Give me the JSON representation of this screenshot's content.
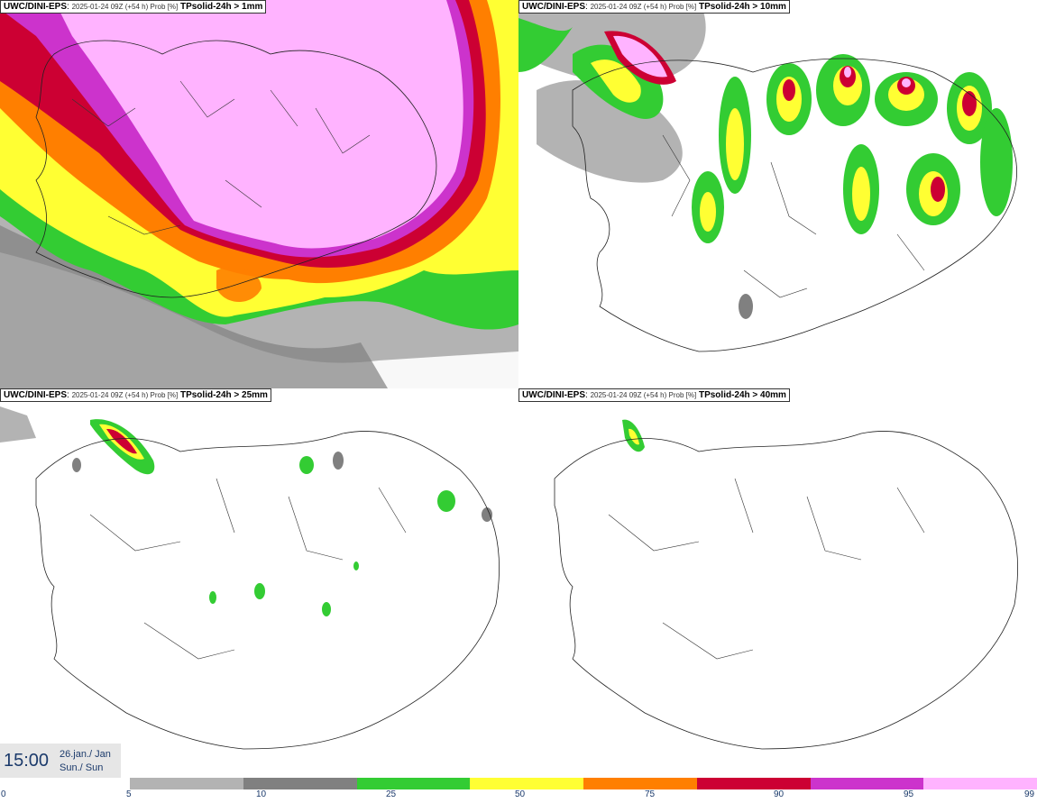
{
  "panels": [
    {
      "model": "UWC/DINI-EPS",
      "run": "2025-01-24 09Z (+54 h) Prob [%]",
      "param": "TPsolid-24h > 1mm"
    },
    {
      "model": "UWC/DINI-EPS",
      "run": "2025-01-24 09Z (+54 h) Prob [%]",
      "param": "TPsolid-24h > 10mm"
    },
    {
      "model": "UWC/DINI-EPS",
      "run": "2025-01-24 09Z (+54 h) Prob [%]",
      "param": "TPsolid-24h > 25mm"
    },
    {
      "model": "UWC/DINI-EPS",
      "run": "2025-01-24 09Z (+54 h) Prob [%]",
      "param": "TPsolid-24h > 40mm"
    }
  ],
  "valid": {
    "time": "15:00",
    "date_line1": "26.jan./ Jan",
    "date_line2": "Sun./ Sun"
  },
  "colorbar": {
    "ticks": [
      "0",
      "5",
      "10",
      "25",
      "50",
      "75",
      "90",
      "95",
      "99"
    ],
    "colors": [
      "#b3b3b3",
      "#808080",
      "#33cc33",
      "#ffff33",
      "#ff7f00",
      "#cc0033",
      "#cc33cc",
      "#ffb3ff"
    ]
  }
}
